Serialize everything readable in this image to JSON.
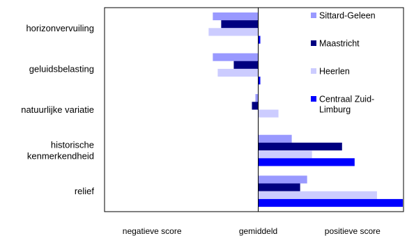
{
  "chart_data": {
    "type": "bar",
    "orientation": "horizontal",
    "categories": [
      "horizonvervuiling",
      "geluidsbelasting",
      "natuurlijke variatie",
      "historische kenmerkendheid",
      "relief"
    ],
    "category_lines": [
      [
        "horizonvervuiling"
      ],
      [
        "geluidsbelasting"
      ],
      [
        "natuurlijke variatie"
      ],
      [
        "historische",
        "kenmerkendheid"
      ],
      [
        "relief"
      ]
    ],
    "series": [
      {
        "name": "Sittard-Geleen",
        "color": "#9999ff",
        "values": [
          -0.65,
          -0.65,
          -0.04,
          0.48,
          0.7
        ]
      },
      {
        "name": "Maastricht",
        "color": "#000080",
        "values": [
          -0.53,
          -0.35,
          -0.09,
          1.2,
          0.6
        ]
      },
      {
        "name": "Heerlen",
        "color": "#ccccff",
        "values": [
          -0.71,
          -0.58,
          0.29,
          0.77,
          1.7
        ]
      },
      {
        "name": "Centraal Zuid-Limburg",
        "name_lines": [
          "Centraal Zuid-",
          "Limburg"
        ],
        "color": "#0000ff",
        "values": [
          0.03,
          0.03,
          0.0,
          1.38,
          2.07
        ]
      }
    ],
    "xlim": [
      -2.2,
      2.08
    ],
    "x_axis_labels": [
      "negatieve score",
      "gemiddeld",
      "positieve score"
    ],
    "legend_position": "top-right",
    "grid": false
  }
}
